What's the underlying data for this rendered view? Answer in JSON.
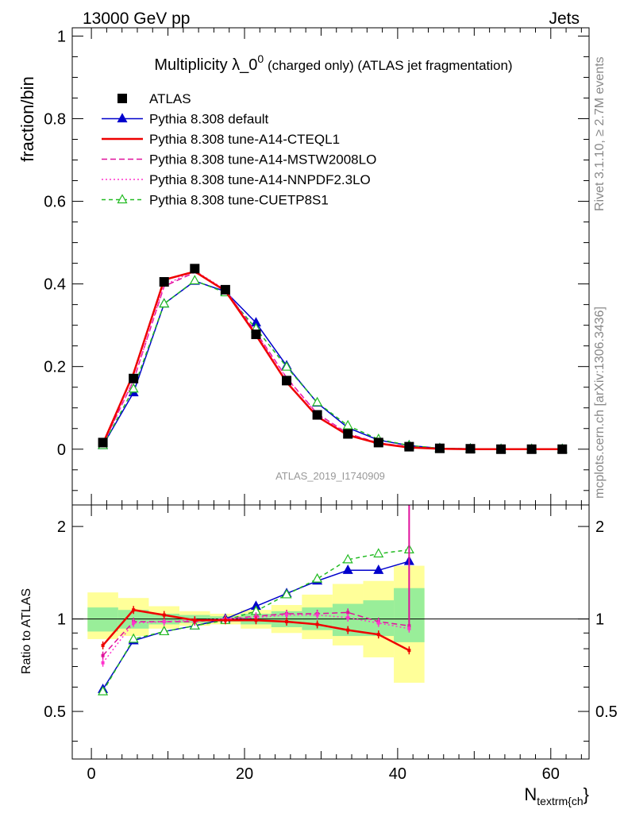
{
  "header": {
    "energy_label": "13000 GeV pp",
    "process_label": "Jets"
  },
  "side_text": {
    "rivet": "Rivet 3.1.10, ≥ 2.7M events",
    "mcplots": "mcplots.cern.ch [arXiv:1306.3436]"
  },
  "chart_data": [
    {
      "type": "line",
      "panel": "main",
      "title_main": "Multiplicity λ_0",
      "title_sup": "0",
      "title_rest": " (charged only) (ATLAS jet fragmentation)",
      "watermark": "ATLAS_2019_I1740909",
      "xlabel": "N",
      "xlabel_sub": "textrm{ch",
      "xlabel_end": "}",
      "ylabel": "fraction/bin",
      "xlim": [
        -2.5,
        65
      ],
      "ylim": [
        -0.135,
        1.02
      ],
      "yticks": [
        0,
        0.2,
        0.4,
        0.6,
        0.8,
        1
      ],
      "ytick_labels": [
        "0",
        "0.2",
        "0.4",
        "0.6",
        "0.8",
        "1"
      ],
      "xticks": [
        0,
        20,
        40,
        60
      ],
      "xtick_labels": [
        "0",
        "20",
        "40",
        "60"
      ],
      "legend_position": "top-left",
      "x": [
        1.5,
        5.5,
        9.5,
        13.5,
        17.5,
        21.5,
        25.5,
        29.5,
        33.5,
        37.5,
        41.5,
        45.5,
        49.5,
        53.5,
        57.5,
        61.5
      ],
      "series": [
        {
          "name": "ATLAS",
          "color": "#000000",
          "style": "data",
          "values": [
            0.016,
            0.171,
            0.405,
            0.437,
            0.386,
            0.278,
            0.166,
            0.083,
            0.037,
            0.016,
            0.006,
            0.002,
            0.001,
            0.0,
            0.0,
            0.0
          ]
        },
        {
          "name": "Pythia 8.308 default",
          "color": "#0000cc",
          "style": "solid-triangle",
          "values": [
            0.009,
            0.137,
            0.352,
            0.407,
            0.382,
            0.306,
            0.202,
            0.112,
            0.052,
            0.022,
            0.009,
            0.002,
            0.001,
            0.0,
            0.0,
            0.0
          ]
        },
        {
          "name": "Pythia 8.308 tune-A14-CTEQL1",
          "color": "#ee0000",
          "style": "solid",
          "values": [
            0.013,
            0.183,
            0.41,
            0.43,
            0.383,
            0.276,
            0.162,
            0.079,
            0.034,
            0.014,
            0.004,
            0.001,
            0.0,
            0.0,
            0.0,
            0.0
          ]
        },
        {
          "name": "Pythia 8.308 tune-A14-MSTW2008LO",
          "color": "#e0119c",
          "style": "dashed",
          "values": [
            0.012,
            0.166,
            0.394,
            0.428,
            0.385,
            0.283,
            0.173,
            0.086,
            0.038,
            0.015,
            0.006,
            0.001,
            0.0,
            0.0,
            0.0,
            0.0
          ]
        },
        {
          "name": "Pythia 8.308 tune-A14-NNPDF2.3LO",
          "color": "#ff33cc",
          "style": "dotted",
          "values": [
            0.011,
            0.166,
            0.397,
            0.432,
            0.386,
            0.28,
            0.172,
            0.085,
            0.036,
            0.015,
            0.005,
            0.001,
            0.0,
            0.0,
            0.0,
            0.0
          ]
        },
        {
          "name": "Pythia 8.308 tune-CUETP8S1",
          "color": "#22bb22",
          "style": "dashed-open-triangle",
          "values": [
            0.009,
            0.146,
            0.352,
            0.408,
            0.379,
            0.292,
            0.199,
            0.113,
            0.057,
            0.024,
            0.009,
            0.002,
            0.001,
            0.0,
            0.0,
            0.0
          ]
        }
      ]
    },
    {
      "type": "line",
      "panel": "ratio",
      "ylabel": "Ratio to ATLAS",
      "xlim": [
        -2.5,
        65
      ],
      "ylim": [
        0.35,
        2.35
      ],
      "yticks": [
        0.5,
        1,
        2
      ],
      "ytick_labels": [
        "0.5",
        "1",
        "2"
      ],
      "bin_edges": [
        -0.5,
        3.5,
        7.5,
        11.5,
        15.5,
        19.5,
        23.5,
        27.5,
        31.5,
        35.5,
        39.5,
        43.5
      ],
      "band_inner": [
        [
          0.91,
          1.09
        ],
        [
          0.93,
          1.07
        ],
        [
          0.96,
          1.04
        ],
        [
          0.97,
          1.03
        ],
        [
          0.98,
          1.02
        ],
        [
          0.96,
          1.04
        ],
        [
          0.94,
          1.06
        ],
        [
          0.92,
          1.09
        ],
        [
          0.88,
          1.12
        ],
        [
          0.88,
          1.15
        ],
        [
          0.84,
          1.26
        ]
      ],
      "band_outer": [
        [
          0.86,
          1.22
        ],
        [
          0.88,
          1.17
        ],
        [
          0.93,
          1.1
        ],
        [
          0.95,
          1.06
        ],
        [
          0.96,
          1.04
        ],
        [
          0.93,
          1.07
        ],
        [
          0.9,
          1.11
        ],
        [
          0.86,
          1.2
        ],
        [
          0.82,
          1.3
        ],
        [
          0.75,
          1.33
        ],
        [
          0.62,
          1.49
        ]
      ],
      "x": [
        1.5,
        5.5,
        9.5,
        13.5,
        17.5,
        21.5,
        25.5,
        29.5,
        33.5,
        37.5,
        41.5
      ],
      "series": [
        {
          "name": "Pythia 8.308 default",
          "color": "#0000cc",
          "values": [
            0.59,
            0.85,
            0.91,
            0.95,
            1.0,
            1.1,
            1.21,
            1.33,
            1.44,
            1.44,
            1.54
          ]
        },
        {
          "name": "Pythia 8.308 tune-A14-CTEQL1",
          "color": "#ee0000",
          "values": [
            0.82,
            1.07,
            1.03,
            0.99,
            0.99,
            0.99,
            0.98,
            0.96,
            0.92,
            0.89,
            0.79
          ]
        },
        {
          "name": "Pythia 8.308 tune-A14-MSTW2008LO",
          "color": "#e0119c",
          "values": [
            0.76,
            0.98,
            0.98,
            0.98,
            1.0,
            1.02,
            1.04,
            1.04,
            1.05,
            0.98,
            0.95
          ]
        },
        {
          "name": "Pythia 8.308 tune-A14-NNPDF2.3LO",
          "color": "#ff33cc",
          "values": [
            0.72,
            0.97,
            0.98,
            0.99,
            1.0,
            1.01,
            1.03,
            1.03,
            1.01,
            0.97,
            0.93
          ]
        },
        {
          "name": "Pythia 8.308 tune-CUETP8S1",
          "color": "#22bb22",
          "values": [
            0.58,
            0.86,
            0.91,
            0.95,
            0.99,
            1.06,
            1.2,
            1.35,
            1.56,
            1.63,
            1.68
          ]
        }
      ]
    }
  ]
}
